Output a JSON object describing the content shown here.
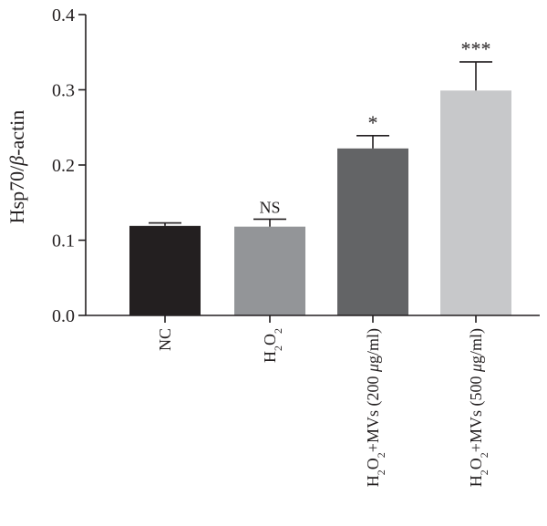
{
  "chart_data": {
    "type": "bar",
    "title": "",
    "ylabel": "Hsp70/β-actin",
    "xlabel": "",
    "ylim": [
      0,
      0.4
    ],
    "yticks": [
      "0.0",
      "0.1",
      "0.2",
      "0.3",
      "0.4"
    ],
    "categories": [
      {
        "label": "NC",
        "parts": [
          {
            "t": "NC",
            "sub": false
          }
        ]
      },
      {
        "label": "H2O2",
        "parts": [
          {
            "t": "H",
            "sub": false
          },
          {
            "t": "2",
            "sub": true
          },
          {
            "t": "O",
            "sub": false
          },
          {
            "t": "2",
            "sub": true
          }
        ]
      },
      {
        "label": "H2O2+MVs (200 μg/ml)",
        "parts": [
          {
            "t": "H",
            "sub": false
          },
          {
            "t": "2",
            "sub": true
          },
          {
            "t": "O",
            "sub": false
          },
          {
            "t": "2",
            "sub": true
          },
          {
            "t": "+MVs (200 ",
            "sub": false
          },
          {
            "t": "μ",
            "sub": false,
            "italic": true
          },
          {
            "t": "g/ml)",
            "sub": false
          }
        ]
      },
      {
        "label": "H2O2+MVs (500 μg/ml)",
        "parts": [
          {
            "t": "H",
            "sub": false
          },
          {
            "t": "2",
            "sub": true
          },
          {
            "t": "O",
            "sub": false
          },
          {
            "t": "2",
            "sub": true
          },
          {
            "t": "+MVs (500 ",
            "sub": false
          },
          {
            "t": "μ",
            "sub": false,
            "italic": true
          },
          {
            "t": "g/ml)",
            "sub": false
          }
        ]
      }
    ],
    "values": [
      0.119,
      0.118,
      0.222,
      0.299
    ],
    "errors": [
      0.004,
      0.01,
      0.017,
      0.038
    ],
    "bar_colors": [
      "#231f20",
      "#939598",
      "#636466",
      "#c7c8ca"
    ],
    "significance": [
      "",
      "NS",
      "*",
      "***"
    ]
  }
}
